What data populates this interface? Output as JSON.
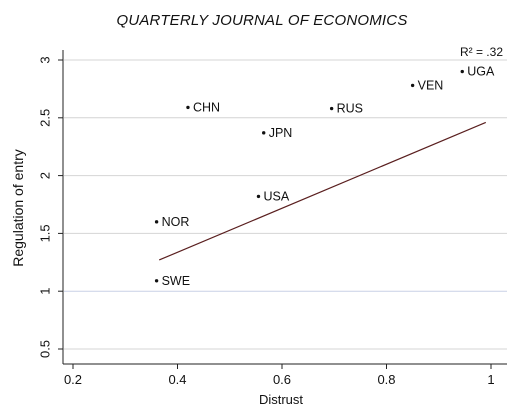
{
  "header": {
    "title": "QUARTERLY JOURNAL OF ECONOMICS"
  },
  "chart_data": {
    "type": "scatter",
    "xlabel": "Distrust",
    "ylabel": "Regulation of entry",
    "xlim": [
      0.2,
      1.0
    ],
    "ylim": [
      0.5,
      3.0
    ],
    "x_ticks": [
      "0.2",
      "0.4",
      "0.6",
      "0.8",
      "1"
    ],
    "y_ticks": [
      "0.5",
      "1",
      "1.5",
      "2",
      "2.5",
      "3"
    ],
    "grid": "horizontal",
    "annotation": "R² = .32",
    "points": [
      {
        "label": "UGA",
        "x": 0.945,
        "y": 2.9
      },
      {
        "label": "VEN",
        "x": 0.85,
        "y": 2.78
      },
      {
        "label": "CHN",
        "x": 0.42,
        "y": 2.59
      },
      {
        "label": "RUS",
        "x": 0.695,
        "y": 2.58
      },
      {
        "label": "JPN",
        "x": 0.565,
        "y": 2.37
      },
      {
        "label": "USA",
        "x": 0.555,
        "y": 1.82
      },
      {
        "label": "NOR",
        "x": 0.36,
        "y": 1.6
      },
      {
        "label": "SWE",
        "x": 0.36,
        "y": 1.09
      }
    ],
    "fit_line": {
      "x": [
        0.365,
        0.99
      ],
      "y": [
        1.27,
        2.46
      ]
    },
    "colors": {
      "points": "#111111",
      "fit_line": "#5a1f1f",
      "grid": "#d4d4d4",
      "axis": "#222222"
    }
  }
}
